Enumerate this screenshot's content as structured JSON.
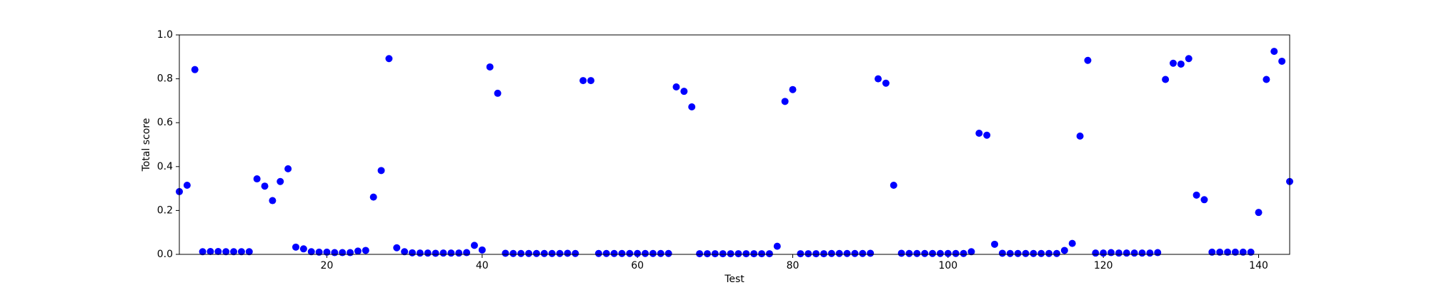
{
  "chart_data": {
    "type": "scatter",
    "x_label": "Test",
    "y_label": "Total score",
    "x": [
      1,
      2,
      3,
      4,
      5,
      6,
      7,
      8,
      9,
      10,
      11,
      12,
      13,
      14,
      15,
      16,
      17,
      18,
      19,
      20,
      21,
      22,
      23,
      24,
      25,
      26,
      27,
      28,
      29,
      30,
      31,
      32,
      33,
      34,
      35,
      36,
      37,
      38,
      39,
      40,
      41,
      42,
      43,
      44,
      45,
      46,
      47,
      48,
      49,
      50,
      51,
      52,
      53,
      54,
      55,
      56,
      57,
      58,
      59,
      60,
      61,
      62,
      63,
      64,
      65,
      66,
      67,
      68,
      69,
      70,
      71,
      72,
      73,
      74,
      75,
      76,
      77,
      78,
      79,
      80,
      81,
      82,
      83,
      84,
      85,
      86,
      87,
      88,
      89,
      90,
      91,
      92,
      93,
      94,
      95,
      96,
      97,
      98,
      99,
      100,
      101,
      102,
      103,
      104,
      105,
      106,
      107,
      108,
      109,
      110,
      111,
      112,
      113,
      114,
      115,
      116,
      117,
      118,
      119,
      120,
      121,
      122,
      123,
      124,
      125,
      126,
      127,
      128,
      129,
      130,
      131,
      132,
      133,
      134,
      135,
      136,
      137,
      138,
      139,
      140,
      141,
      142,
      143,
      144
    ],
    "values": [
      0.286,
      0.315,
      0.842,
      0.012,
      0.013,
      0.013,
      0.012,
      0.012,
      0.012,
      0.012,
      0.344,
      0.311,
      0.245,
      0.332,
      0.39,
      0.033,
      0.025,
      0.012,
      0.01,
      0.01,
      0.008,
      0.008,
      0.008,
      0.015,
      0.018,
      0.261,
      0.382,
      0.892,
      0.03,
      0.012,
      0.007,
      0.006,
      0.006,
      0.005,
      0.006,
      0.006,
      0.006,
      0.008,
      0.041,
      0.02,
      0.854,
      0.734,
      0.005,
      0.004,
      0.004,
      0.004,
      0.004,
      0.004,
      0.004,
      0.004,
      0.005,
      0.004,
      0.792,
      0.792,
      0.004,
      0.004,
      0.004,
      0.004,
      0.004,
      0.004,
      0.004,
      0.004,
      0.004,
      0.004,
      0.763,
      0.743,
      0.672,
      0.003,
      0.003,
      0.003,
      0.003,
      0.003,
      0.003,
      0.003,
      0.003,
      0.003,
      0.003,
      0.037,
      0.697,
      0.751,
      0.003,
      0.003,
      0.003,
      0.003,
      0.004,
      0.004,
      0.004,
      0.004,
      0.004,
      0.005,
      0.8,
      0.78,
      0.315,
      0.005,
      0.004,
      0.004,
      0.004,
      0.004,
      0.004,
      0.004,
      0.004,
      0.004,
      0.012,
      0.552,
      0.543,
      0.046,
      0.005,
      0.004,
      0.004,
      0.004,
      0.004,
      0.004,
      0.004,
      0.004,
      0.018,
      0.05,
      0.539,
      0.884,
      0.006,
      0.006,
      0.008,
      0.006,
      0.006,
      0.006,
      0.006,
      0.006,
      0.008,
      0.797,
      0.871,
      0.867,
      0.892,
      0.27,
      0.249,
      0.01,
      0.01,
      0.01,
      0.01,
      0.01,
      0.01,
      0.191,
      0.797,
      0.925,
      0.88,
      0.332
    ],
    "color": "#0000ff",
    "xlim": [
      1,
      144
    ],
    "xticks": [
      20,
      40,
      60,
      80,
      100,
      120,
      140
    ],
    "ylim": [
      0,
      1
    ],
    "yticks": [
      {
        "value": 0,
        "label": "0.0"
      },
      {
        "value": 0.2,
        "label": "0.2"
      },
      {
        "value": 0.4,
        "label": "0.4"
      },
      {
        "value": 0.6,
        "label": "0.6"
      },
      {
        "value": 0.8,
        "label": "0.8"
      },
      {
        "value": 1,
        "label": "1.0"
      }
    ],
    "grid": false
  }
}
